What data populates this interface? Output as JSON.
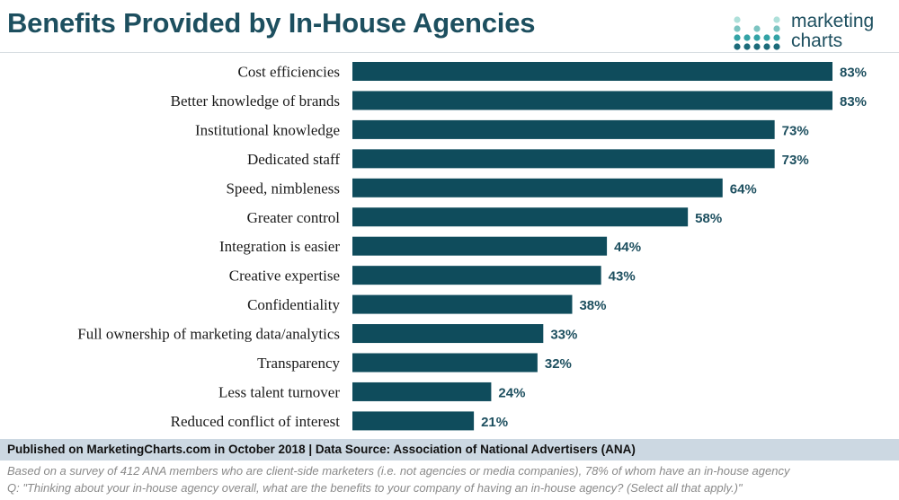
{
  "header": {
    "title": "Benefits Provided by In-House Agencies",
    "logo_line1": "marketing",
    "logo_line2": "charts"
  },
  "colors": {
    "bar": "#0f4c5c",
    "title": "#1d4f5f",
    "source_background": "#ccd8e2",
    "logo_dots": [
      "#1c6b7a",
      "#33a3a6",
      "#7cc4c1",
      "#aee0da"
    ]
  },
  "chart_data": {
    "type": "bar",
    "orientation": "horizontal",
    "title": "Benefits Provided by In-House Agencies",
    "categories": [
      "Cost efficiencies",
      "Better knowledge of brands",
      "Institutional knowledge",
      "Dedicated staff",
      "Speed, nimbleness",
      "Greater control",
      "Integration is easier",
      "Creative expertise",
      "Confidentiality",
      "Full ownership of marketing data/analytics",
      "Transparency",
      "Less talent turnover",
      "Reduced conflict of interest"
    ],
    "values": [
      83,
      83,
      73,
      73,
      64,
      58,
      44,
      43,
      38,
      33,
      32,
      24,
      21
    ],
    "value_labels": [
      "83%",
      "83%",
      "73%",
      "73%",
      "64%",
      "58%",
      "44%",
      "43%",
      "38%",
      "33%",
      "32%",
      "24%",
      "21%"
    ],
    "unit": "%",
    "xlim": [
      0,
      83
    ],
    "grid": false,
    "legend": "none"
  },
  "footer": {
    "source": "Published on MarketingCharts.com in October 2018 | Data Source: Association of National Advertisers (ANA)",
    "note1": "Based on a survey of 412 ANA members who are client-side marketers (i.e. not agencies or media companies), 78% of whom have an in-house agency",
    "note2": "Q: \"Thinking about your in-house agency overall, what are the benefits to your company of having an in-house agency? (Select all that apply.)\""
  }
}
